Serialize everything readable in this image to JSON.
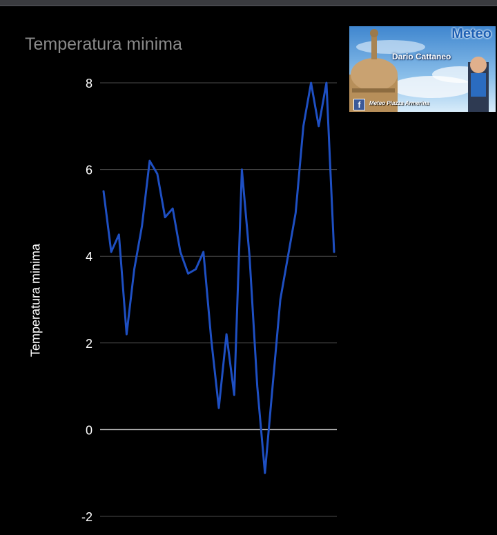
{
  "window": {
    "accent": "#3a3b3f"
  },
  "banner": {
    "brand_text": "Meteo",
    "person_name": "Dario Cattaneo",
    "facebook_label": "Meteo Piazza Armerina",
    "icon": "facebook-icon"
  },
  "chart_data": {
    "type": "line",
    "title": "Temperatura minima",
    "ylabel": "Temperatura minima",
    "xlabel": "",
    "ylim": [
      -2,
      8
    ],
    "yticks": [
      -2,
      0,
      2,
      4,
      6,
      8
    ],
    "grid": true,
    "legend": "none",
    "line_color": "#1e4fc2",
    "series": [
      {
        "values": [
          5.5,
          4.1,
          4.5,
          2.2,
          3.7,
          4.7,
          6.2,
          5.9,
          4.9,
          5.1,
          4.1,
          3.6,
          3.7,
          4.1,
          2.1,
          0.5,
          2.2,
          0.8,
          6.0,
          4.0,
          1.0,
          -1.0,
          1.0,
          3.0,
          4.0,
          5.0,
          7.0,
          8.0,
          7.0,
          8.0,
          4.1
        ]
      }
    ]
  }
}
